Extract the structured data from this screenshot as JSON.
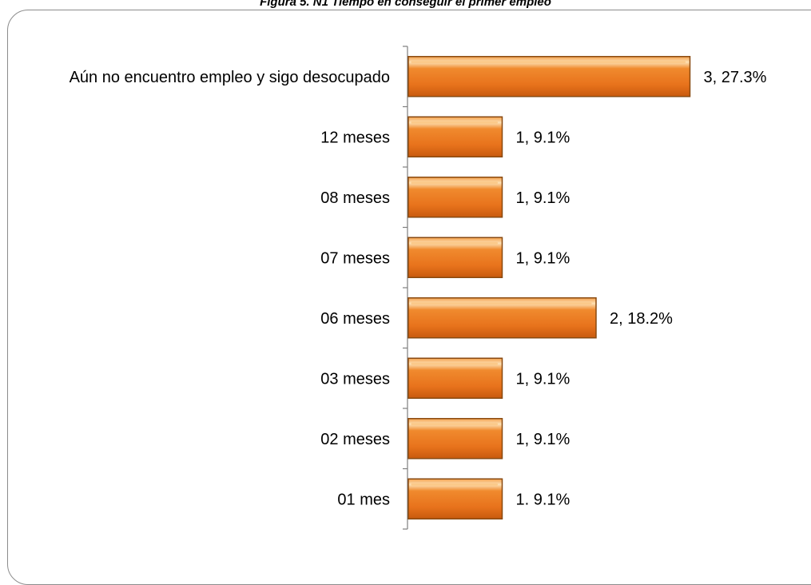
{
  "caption": "Figura 5. N1 Tiempo en conseguir el primer empleo",
  "chart_data": {
    "type": "bar",
    "orientation": "horizontal",
    "categories": [
      "Aún no encuentro empleo y sigo desocupado",
      "12 meses",
      "08 meses",
      "07 meses",
      "06 meses",
      "03 meses",
      "02 meses",
      "01 mes"
    ],
    "values": [
      3,
      1,
      1,
      1,
      2,
      1,
      1,
      1
    ],
    "percentages": [
      27.3,
      9.1,
      9.1,
      9.1,
      18.2,
      9.1,
      9.1,
      9.1
    ],
    "data_labels": [
      "3, 27.3%",
      "1, 9.1%",
      "1, 9.1%",
      "1, 9.1%",
      "2, 18.2%",
      "1, 9.1%",
      "1, 9.1%",
      "1. 9.1%"
    ],
    "xlim": [
      0,
      3
    ],
    "title": "",
    "xlabel": "",
    "ylabel": "",
    "grid": false,
    "legend": "none",
    "bar_color": "#E8731C",
    "bar_highlight_color": "#FBC98A",
    "bar_edge_color": "#8A4A10"
  }
}
